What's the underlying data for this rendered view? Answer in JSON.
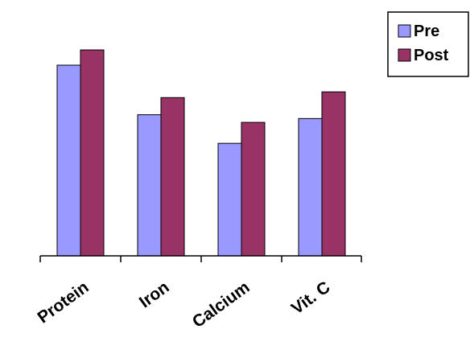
{
  "chart_data": {
    "type": "bar",
    "categories": [
      "Protein",
      "Iron",
      "Calcium",
      "Vit. C"
    ],
    "series": [
      {
        "name": "Pre",
        "values": [
          100,
          74,
          59,
          72
        ],
        "color": "#9999ff"
      },
      {
        "name": "Post",
        "values": [
          108,
          83,
          70,
          86
        ],
        "color": "#993366"
      }
    ],
    "ylim": [
      0,
      130
    ],
    "grid": false,
    "legend": "top-right",
    "title": "",
    "xlabel": "",
    "ylabel": ""
  }
}
